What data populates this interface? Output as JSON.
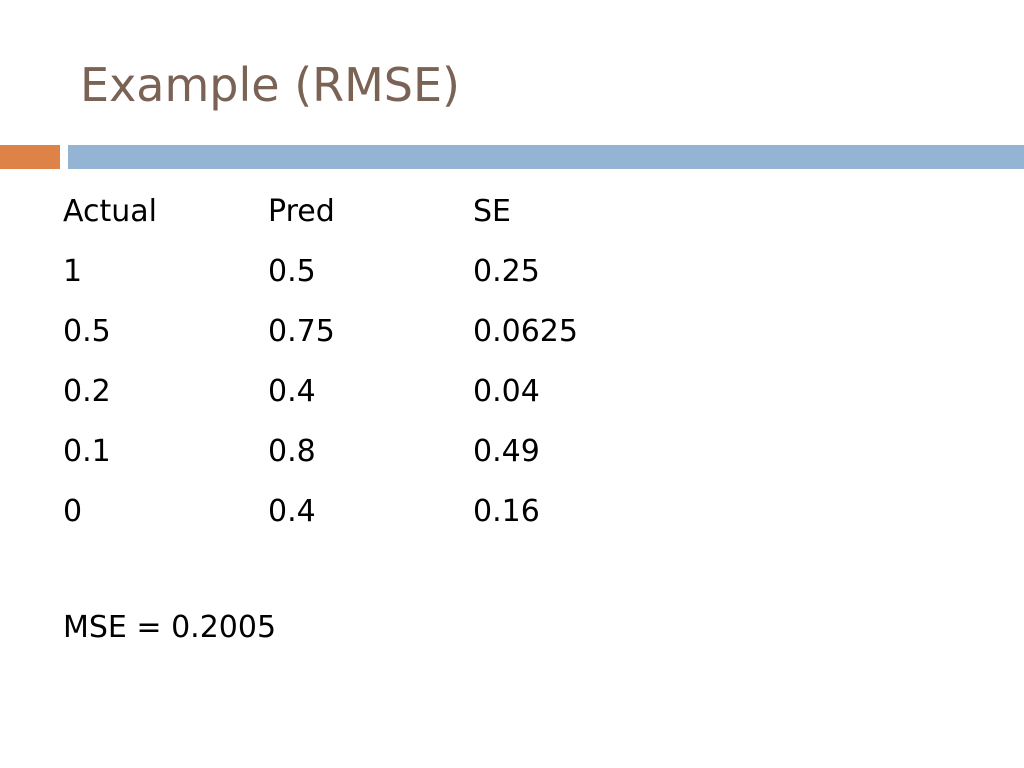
{
  "slide": {
    "title": "Example (RMSE)",
    "table": {
      "headers": [
        "Actual",
        "Pred",
        "SE"
      ],
      "rows": [
        [
          "1",
          "0.5",
          "0.25"
        ],
        [
          "0.5",
          "0.75",
          "0.0625"
        ],
        [
          "0.2",
          "0.4",
          "0.04"
        ],
        [
          "0.1",
          "0.8",
          "0.49"
        ],
        [
          "0",
          "0.4",
          "0.16"
        ]
      ]
    },
    "mse_text": "MSE = 0.2005",
    "colors": {
      "title": "#7a6255",
      "accent_orange": "#dd8347",
      "accent_blue": "#93b5d3"
    }
  }
}
